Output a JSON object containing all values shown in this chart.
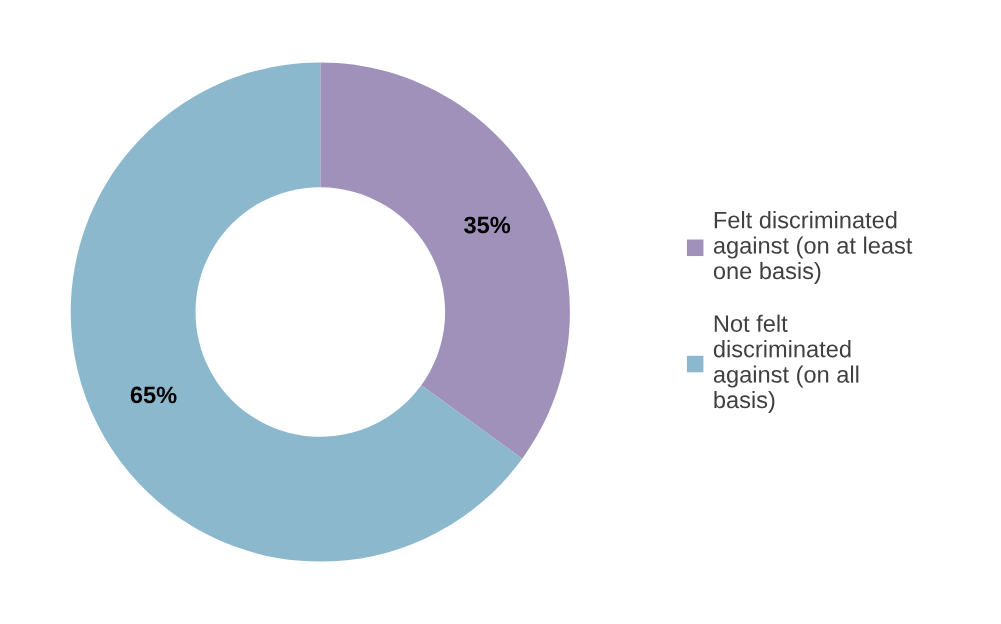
{
  "chart_data": {
    "type": "donut",
    "categories": [
      "Felt discriminated against (on at least one basis)",
      "Not felt discriminated against (on all basis)"
    ],
    "values": [
      35,
      65
    ],
    "colors": [
      "#9f91b9",
      "#8bb8cc"
    ],
    "value_labels": [
      "35%",
      "65%"
    ],
    "legend": "right"
  }
}
